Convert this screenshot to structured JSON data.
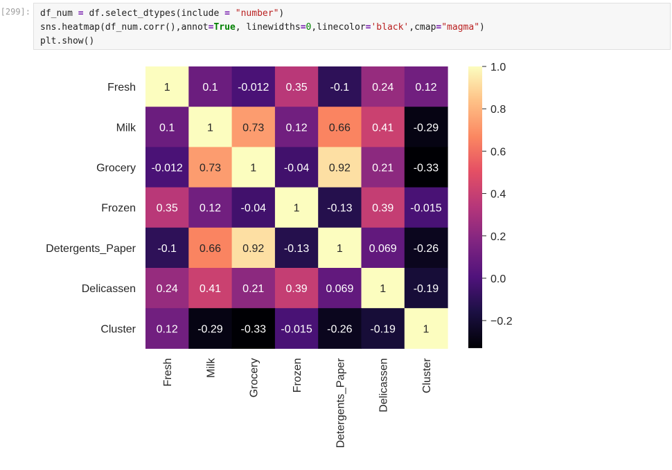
{
  "prompt": "[299]:",
  "code": {
    "lines": [
      [
        [
          "df_num ",
          ""
        ],
        [
          "=",
          "op"
        ],
        [
          " df.select_dtypes(include ",
          ""
        ],
        [
          "=",
          "op"
        ],
        [
          " ",
          ""
        ],
        [
          "\"number\"",
          "str"
        ],
        [
          ")",
          ""
        ]
      ],
      [
        [
          "sns.heatmap(df_num.corr(),annot",
          ""
        ],
        [
          "=",
          "op"
        ],
        [
          "True",
          "kw"
        ],
        [
          ", linewidths",
          ""
        ],
        [
          "=",
          "op"
        ],
        [
          "0",
          "num"
        ],
        [
          ",linecolor",
          ""
        ],
        [
          "=",
          "op"
        ],
        [
          "'black'",
          "str"
        ],
        [
          ",cmap",
          ""
        ],
        [
          "=",
          "op"
        ],
        [
          "\"magma\"",
          "str"
        ],
        [
          ")",
          ""
        ]
      ],
      [
        [
          "plt.show()",
          ""
        ]
      ]
    ]
  },
  "chart_data": {
    "type": "heatmap",
    "title": "",
    "colormap": "magma",
    "rows": [
      "Fresh",
      "Milk",
      "Grocery",
      "Frozen",
      "Detergents_Paper",
      "Delicassen",
      "Cluster"
    ],
    "columns": [
      "Fresh",
      "Milk",
      "Grocery",
      "Frozen",
      "Detergents_Paper",
      "Delicassen",
      "Cluster"
    ],
    "values": [
      [
        1,
        0.1,
        -0.012,
        0.35,
        -0.1,
        0.24,
        0.12
      ],
      [
        0.1,
        1,
        0.73,
        0.12,
        0.66,
        0.41,
        -0.29
      ],
      [
        -0.012,
        0.73,
        1,
        -0.04,
        0.92,
        0.21,
        -0.33
      ],
      [
        0.35,
        0.12,
        -0.04,
        1,
        -0.13,
        0.39,
        -0.015
      ],
      [
        -0.1,
        0.66,
        0.92,
        -0.13,
        1,
        0.069,
        -0.26
      ],
      [
        0.24,
        0.41,
        0.21,
        0.39,
        0.069,
        1,
        -0.19
      ],
      [
        0.12,
        -0.29,
        -0.33,
        -0.015,
        -0.26,
        -0.19,
        1
      ]
    ],
    "labels": [
      [
        "1",
        "0.1",
        "-0.012",
        "0.35",
        "-0.1",
        "0.24",
        "0.12"
      ],
      [
        "0.1",
        "1",
        "0.73",
        "0.12",
        "0.66",
        "0.41",
        "-0.29"
      ],
      [
        "-0.012",
        "0.73",
        "1",
        "-0.04",
        "0.92",
        "0.21",
        "-0.33"
      ],
      [
        "0.35",
        "0.12",
        "-0.04",
        "1",
        "-0.13",
        "0.39",
        "-0.015"
      ],
      [
        "-0.1",
        "0.66",
        "0.92",
        "-0.13",
        "1",
        "0.069",
        "-0.26"
      ],
      [
        "0.24",
        "0.41",
        "0.21",
        "0.39",
        "0.069",
        "1",
        "-0.19"
      ],
      [
        "0.12",
        "-0.29",
        "-0.33",
        "-0.015",
        "-0.26",
        "-0.19",
        "1"
      ]
    ],
    "colorbar": {
      "range": [
        -0.33,
        1.0
      ],
      "ticks": [
        1.0,
        0.8,
        0.6,
        0.4,
        0.2,
        0.0,
        -0.2
      ],
      "tick_labels": [
        "1.0",
        "0.8",
        "0.6",
        "0.4",
        "0.2",
        "0.0",
        "−0.2"
      ],
      "placement": "right"
    },
    "grid": false
  }
}
